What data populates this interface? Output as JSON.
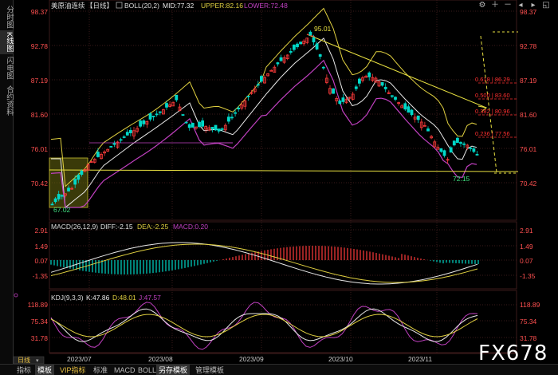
{
  "sidebar": {
    "items": [
      {
        "label": "分时图"
      },
      {
        "label": "K线图"
      },
      {
        "label": "闪电图"
      },
      {
        "label": "合约资料"
      }
    ]
  },
  "header": {
    "title": "美原油连续",
    "period": "【日线】",
    "indicator": "BOLL(20,2)",
    "mid": "MID:77.32",
    "upper": "UPPER:82.16",
    "lower": "LOWER:72.48"
  },
  "macd_header": {
    "name": "MACD(26,12,9)",
    "diff": "DIFF:-2.15",
    "dea": "DEA:-2.25",
    "macd": "MACD:0.20"
  },
  "kdj_header": {
    "name": "KDJ(9,3,3)",
    "k": "K:47.86",
    "d": "D:48.01",
    "j": "J:47.57"
  },
  "price_axis": [
    "98.37",
    "92.78",
    "87.19",
    "81.60",
    "76.01",
    "70.42"
  ],
  "macd_axis": [
    "2.91",
    "1.49",
    "0.07",
    "-1.35"
  ],
  "kdj_axis": [
    "118.89",
    "75.34",
    "31.78"
  ],
  "annotations": {
    "high": "95.01",
    "low_left": "67.02",
    "low_right": "72.15",
    "fib": [
      "0.618 | 86.29",
      "0.500 | 83.60",
      "0.382 | 80.96",
      "0.236 | 77.56"
    ]
  },
  "x_axis": [
    "2023/07",
    "2023/08",
    "2023/09",
    "2023/10",
    "2023/11"
  ],
  "bottom_tabs": [
    {
      "label": "日线"
    },
    {
      "label": "指标"
    },
    {
      "label": "模板"
    },
    {
      "label": "VIP指标"
    },
    {
      "label": "标准"
    },
    {
      "label": "MACD"
    },
    {
      "label": "BOLL"
    },
    {
      "label": "另存模板"
    },
    {
      "label": "管理模板"
    }
  ],
  "brand": "FX678",
  "colors": {
    "up": "#ff3b3b",
    "down": "#00d8c8",
    "upper_band": "#e0d040",
    "lower_band": "#c040c0",
    "mid_band": "#e8e8e8",
    "accent_yellow": "#e8e040",
    "fib_red": "#ff3030"
  }
}
